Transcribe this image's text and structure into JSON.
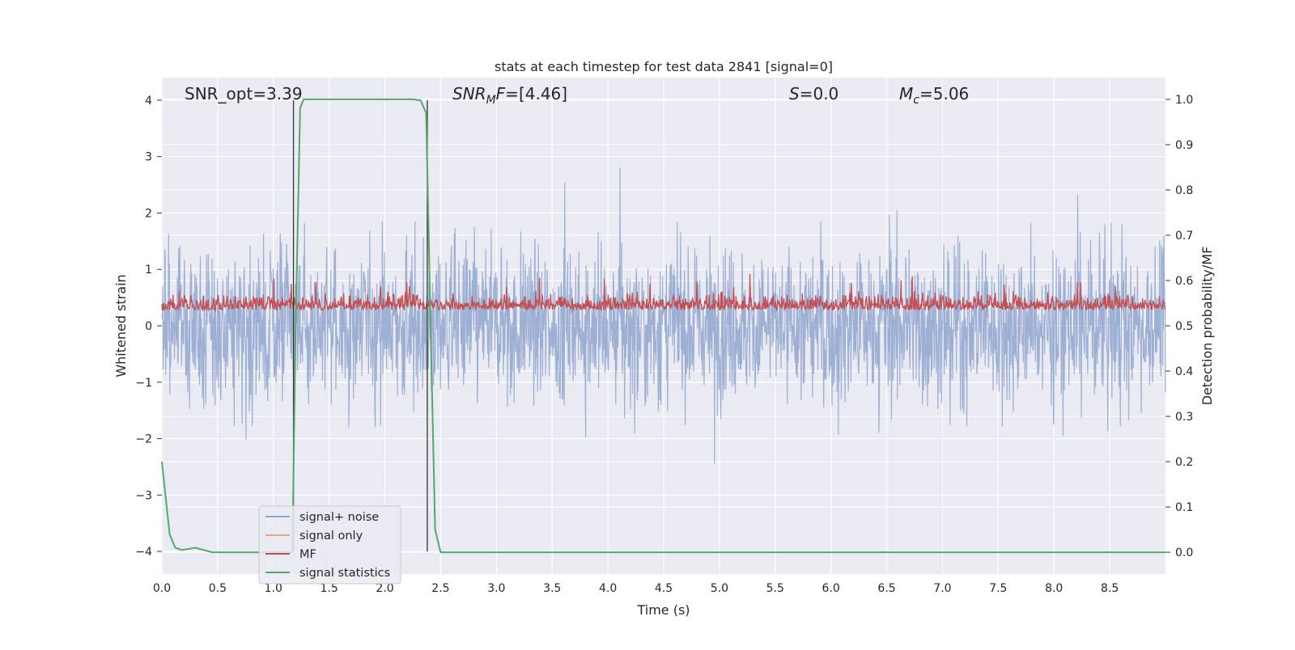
{
  "chart_data": {
    "type": "line",
    "title": "stats at each timestep for test data 2841 [signal=0]",
    "xlabel": "Time (s)",
    "ylabel_left": "Whitened strain",
    "ylabel_right": "Detection probability/MF",
    "xlim": [
      0,
      9
    ],
    "ylim_left": [
      -4.4,
      4.4
    ],
    "ylim_right": [
      -0.048,
      1.048
    ],
    "x_ticks": [
      "0.0",
      "0.5",
      "1.0",
      "1.5",
      "2.0",
      "2.5",
      "3.0",
      "3.5",
      "4.0",
      "4.5",
      "5.0",
      "5.5",
      "6.0",
      "6.5",
      "7.0",
      "7.5",
      "8.0",
      "8.5"
    ],
    "y_ticks_left": [
      "−4",
      "−3",
      "−2",
      "−1",
      "0",
      "1",
      "2",
      "3",
      "4"
    ],
    "y_ticks_right": [
      "0.0",
      "0.1",
      "0.2",
      "0.3",
      "0.4",
      "0.5",
      "0.6",
      "0.7",
      "0.8",
      "0.9",
      "1.0"
    ],
    "grid": true,
    "legend_position": "lower-left",
    "annotations": {
      "snr_opt": "SNR_opt=3.39",
      "snr_mf": "[4.46]",
      "s_value": "0.0",
      "mc_value": "5.06"
    },
    "series": [
      {
        "name": "signal+ noise",
        "color": "#8fa6cf",
        "axis": "left",
        "style": "dense noise, amplitude roughly ±2.5 with peaks to ±3.7"
      },
      {
        "name": "signal only",
        "color": "#e9a68a",
        "axis": "left",
        "values": []
      },
      {
        "name": "MF",
        "color": "#c44e52",
        "axis": "right",
        "style": "dense trace between about 0.50 and 0.63, peaks to 0.67"
      },
      {
        "name": "signal statistics",
        "color": "#55a868",
        "axis": "right",
        "x": [
          0.0,
          0.07,
          0.12,
          0.18,
          0.3,
          0.45,
          1.0,
          1.17,
          1.2,
          1.24,
          1.27,
          1.32,
          1.5,
          2.0,
          2.25,
          2.32,
          2.37,
          2.41,
          2.45,
          2.5,
          3.0,
          9.0
        ],
        "values": [
          0.2,
          0.04,
          0.01,
          0.005,
          0.01,
          0.0,
          0.0,
          0.0,
          0.5,
          0.98,
          1.0,
          1.0,
          1.0,
          1.0,
          1.0,
          0.998,
          0.97,
          0.5,
          0.05,
          0.0,
          0.0,
          0.0
        ]
      }
    ],
    "vertical_markers": [
      {
        "x": 1.18,
        "ymin": -4,
        "ymax": 4,
        "color": "#333333"
      },
      {
        "x": 2.38,
        "ymin": -4,
        "ymax": 4,
        "color": "#333333"
      }
    ]
  }
}
